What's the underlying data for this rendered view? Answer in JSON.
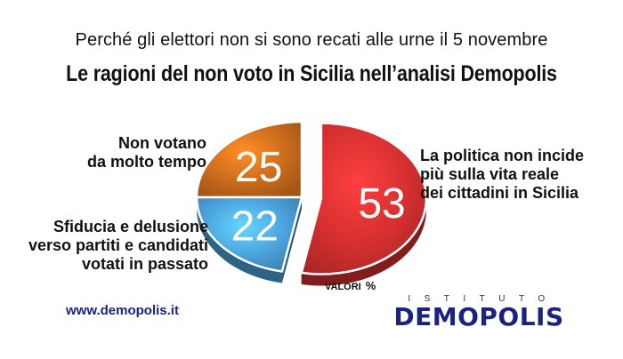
{
  "header": {
    "subtitle": "Perché gli elettori non si sono recati alle urne il 5 novembre",
    "title": "Le ragioni del non voto in Sicilia nell’analisi Demopolis"
  },
  "chart_data": {
    "type": "pie",
    "title": "Le ragioni del non voto in Sicilia nell’analisi Demopolis",
    "unit_label": "VALORI",
    "unit_symbol": "%",
    "slices": [
      {
        "value": 53,
        "label_lines": [
          "La politica non incide",
          "più sulla vita reale",
          "dei cittadini in Sicilia"
        ],
        "color": "#d32f2f",
        "exploded": true
      },
      {
        "value": 22,
        "label_lines": [
          "Sfiducia e delusione",
          "verso partiti e candidati",
          "votati in passato"
        ],
        "color": "#4a9fd8",
        "exploded": false
      },
      {
        "value": 25,
        "label_lines": [
          "Non votano",
          "da molto tempo"
        ],
        "color": "#c96a1c",
        "exploded": false
      }
    ]
  },
  "footer": {
    "website": "www.demopolis.it",
    "logo_top": "ISTITUTO",
    "logo_main": "DEMOPOLIS"
  }
}
